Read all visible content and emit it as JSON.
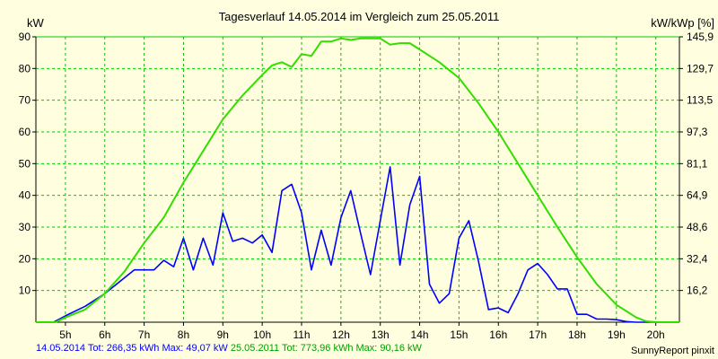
{
  "chart_data": {
    "type": "line",
    "title": "Tagesverlauf 14.05.2014 im Vergleich zum 25.05.2011",
    "ylabel_left": "kW",
    "ylabel_right": "kW/kWp [%]",
    "x_ticks": [
      "5h",
      "6h",
      "7h",
      "8h",
      "9h",
      "10h",
      "11h",
      "12h",
      "13h",
      "14h",
      "15h",
      "16h",
      "17h",
      "18h",
      "19h",
      "20h"
    ],
    "x_tick_hours": [
      5,
      6,
      7,
      8,
      9,
      10,
      11,
      12,
      13,
      14,
      15,
      16,
      17,
      18,
      19,
      20
    ],
    "xlim": [
      4.25,
      20.6
    ],
    "ylim": [
      0,
      90
    ],
    "y_ticks_left": [
      "10",
      "20",
      "30",
      "40",
      "50",
      "60",
      "70",
      "80",
      "90"
    ],
    "y_ticks_left_values": [
      10,
      20,
      30,
      40,
      50,
      60,
      70,
      80,
      90
    ],
    "y_ticks_right": [
      "16,2",
      "32,4",
      "48,6",
      "64,9",
      "81,1",
      "97,3",
      "113,5",
      "129,7",
      "145,9"
    ],
    "grid": true,
    "series": [
      {
        "name": "14.05.2014",
        "color": "#0000ff",
        "points": [
          [
            4.25,
            0
          ],
          [
            4.7,
            0
          ],
          [
            5.0,
            2
          ],
          [
            5.5,
            5
          ],
          [
            6.0,
            9
          ],
          [
            6.5,
            14
          ],
          [
            6.75,
            16.5
          ],
          [
            7.0,
            16.5
          ],
          [
            7.25,
            16.5
          ],
          [
            7.5,
            19.5
          ],
          [
            7.75,
            17.5
          ],
          [
            8.0,
            26.5
          ],
          [
            8.25,
            16.5
          ],
          [
            8.5,
            26.5
          ],
          [
            8.75,
            18
          ],
          [
            9.0,
            34.5
          ],
          [
            9.25,
            25.5
          ],
          [
            9.5,
            26.5
          ],
          [
            9.75,
            25
          ],
          [
            10.0,
            27.5
          ],
          [
            10.25,
            22
          ],
          [
            10.5,
            41.5
          ],
          [
            10.75,
            43.5
          ],
          [
            11.0,
            34.5
          ],
          [
            11.25,
            16.5
          ],
          [
            11.5,
            29
          ],
          [
            11.75,
            18
          ],
          [
            12.0,
            33
          ],
          [
            12.25,
            41.5
          ],
          [
            12.5,
            28
          ],
          [
            12.75,
            15
          ],
          [
            13.0,
            32
          ],
          [
            13.25,
            49
          ],
          [
            13.5,
            18
          ],
          [
            13.75,
            37
          ],
          [
            14.0,
            46
          ],
          [
            14.25,
            12
          ],
          [
            14.5,
            6
          ],
          [
            14.75,
            9
          ],
          [
            15.0,
            26.5
          ],
          [
            15.25,
            32
          ],
          [
            15.5,
            19
          ],
          [
            15.75,
            4
          ],
          [
            16.0,
            4.5
          ],
          [
            16.25,
            3
          ],
          [
            16.5,
            9
          ],
          [
            16.75,
            16.5
          ],
          [
            17.0,
            18.5
          ],
          [
            17.25,
            15
          ],
          [
            17.5,
            10.5
          ],
          [
            17.75,
            10.5
          ],
          [
            18.0,
            2.5
          ],
          [
            18.25,
            2.5
          ],
          [
            18.5,
            1
          ],
          [
            18.75,
            1
          ],
          [
            19.0,
            0.8
          ],
          [
            19.25,
            0.2
          ],
          [
            19.5,
            0
          ],
          [
            20.6,
            0
          ]
        ]
      },
      {
        "name": "25.05.2011",
        "color": "#33dd00",
        "points": [
          [
            4.25,
            0
          ],
          [
            4.75,
            0
          ],
          [
            5.0,
            1.5
          ],
          [
            5.5,
            4
          ],
          [
            6.0,
            9
          ],
          [
            6.5,
            16
          ],
          [
            7.0,
            25
          ],
          [
            7.5,
            33
          ],
          [
            8.0,
            44
          ],
          [
            8.5,
            54
          ],
          [
            9.0,
            64
          ],
          [
            9.5,
            71.5
          ],
          [
            10.0,
            78
          ],
          [
            10.25,
            81
          ],
          [
            10.5,
            82
          ],
          [
            10.75,
            80.5
          ],
          [
            11.0,
            84.5
          ],
          [
            11.25,
            84
          ],
          [
            11.5,
            88.5
          ],
          [
            11.75,
            88.5
          ],
          [
            12.0,
            89.5
          ],
          [
            12.25,
            89
          ],
          [
            12.5,
            89.5
          ],
          [
            13.0,
            89.5
          ],
          [
            13.25,
            87.5
          ],
          [
            13.5,
            88
          ],
          [
            13.75,
            88
          ],
          [
            14.0,
            86
          ],
          [
            14.5,
            82
          ],
          [
            15.0,
            77
          ],
          [
            15.5,
            69
          ],
          [
            16.0,
            60
          ],
          [
            16.5,
            50
          ],
          [
            17.0,
            40
          ],
          [
            17.5,
            30
          ],
          [
            18.0,
            20.5
          ],
          [
            18.5,
            12
          ],
          [
            19.0,
            5.5
          ],
          [
            19.5,
            1.5
          ],
          [
            19.75,
            0.3
          ],
          [
            20.0,
            0
          ],
          [
            20.6,
            0
          ]
        ]
      }
    ]
  },
  "footer": {
    "s1_label": "14.05.2014 Tot: 266,35 kWh Max: 49,07 kW",
    "s2_label": "25.05.2011 Tot: 773,96 kWh Max: 90,16 kW",
    "credit": "SunnyReport pinxit"
  },
  "colors": {
    "background": "#ffffe0",
    "grid": "#00c800",
    "axis": "#000000"
  }
}
